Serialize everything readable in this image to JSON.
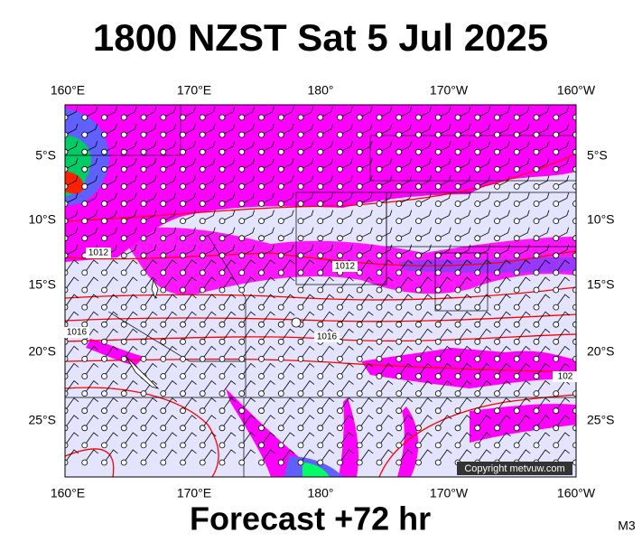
{
  "header": {
    "title": "1800 NZST Sat 5 Jul 2025"
  },
  "map": {
    "lon_labels": [
      "160°E",
      "170°E",
      "180°",
      "170°W",
      "160°W"
    ],
    "lat_labels": [
      "5°S",
      "10°S",
      "15°S",
      "20°S",
      "25°S"
    ],
    "isobar_labels": [
      "1012",
      "1012",
      "1016",
      "1016",
      "102"
    ],
    "copyright": "Copyright metvuw.com"
  },
  "footer": {
    "forecast": "Forecast +72 hr",
    "code": "M3"
  }
}
